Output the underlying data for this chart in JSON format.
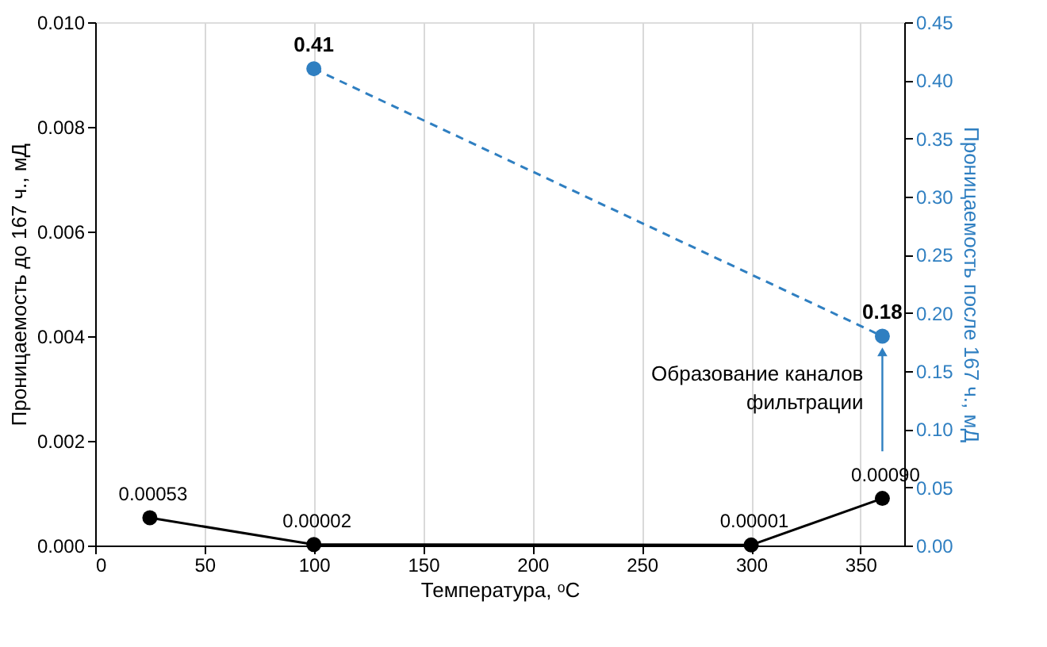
{
  "chart_data": {
    "type": "line",
    "xlabel": "Температура, ᵒC",
    "ylabel": "Проницаемость до 167 ч., мД",
    "y2label": "Проницаемость после 167 ч., мД",
    "series": [
      {
        "color": "#000000",
        "x": [
          25,
          100,
          300,
          360
        ],
        "values": [
          0.00053,
          2e-05,
          1e-05,
          0.0009
        ],
        "value_labels": [
          "0.00053",
          "0.00002",
          "0.00001",
          "0.00090"
        ],
        "line_style": "solid"
      },
      {
        "color": "#2f7fc1",
        "x": [
          100,
          360
        ],
        "values": [
          0.41,
          0.18
        ],
        "value_labels": [
          "0.41",
          "0.18"
        ],
        "axis": "y2",
        "line_style": "dashed"
      }
    ],
    "xlim": [
      0,
      370
    ],
    "xticks": [
      0,
      50,
      100,
      150,
      200,
      250,
      300,
      350
    ],
    "ylim": [
      0,
      0.01
    ],
    "yticks": [
      {
        "value": 0,
        "label": "0.000"
      },
      {
        "value": 0.002,
        "label": "0.002"
      },
      {
        "value": 0.004,
        "label": "0.004"
      },
      {
        "value": 0.006,
        "label": "0.006"
      },
      {
        "value": 0.008,
        "label": "0.008"
      },
      {
        "value": 0.01,
        "label": "0.010"
      }
    ],
    "y2lim": [
      0,
      0.45
    ],
    "y2ticks": [
      {
        "value": 0,
        "label": "0.00"
      },
      {
        "value": 0.05,
        "label": "0.05"
      },
      {
        "value": 0.1,
        "label": "0.10"
      },
      {
        "value": 0.15,
        "label": "0.15"
      },
      {
        "value": 0.2,
        "label": "0.20"
      },
      {
        "value": 0.25,
        "label": "0.25"
      },
      {
        "value": 0.3,
        "label": "0.30"
      },
      {
        "value": 0.35,
        "label": "0.35"
      },
      {
        "value": 0.4,
        "label": "0.40"
      },
      {
        "value": 0.45,
        "label": "0.45"
      }
    ],
    "annotations": [
      "Образование каналов\nфильтрации"
    ],
    "grid": "x",
    "marker": "circle"
  }
}
